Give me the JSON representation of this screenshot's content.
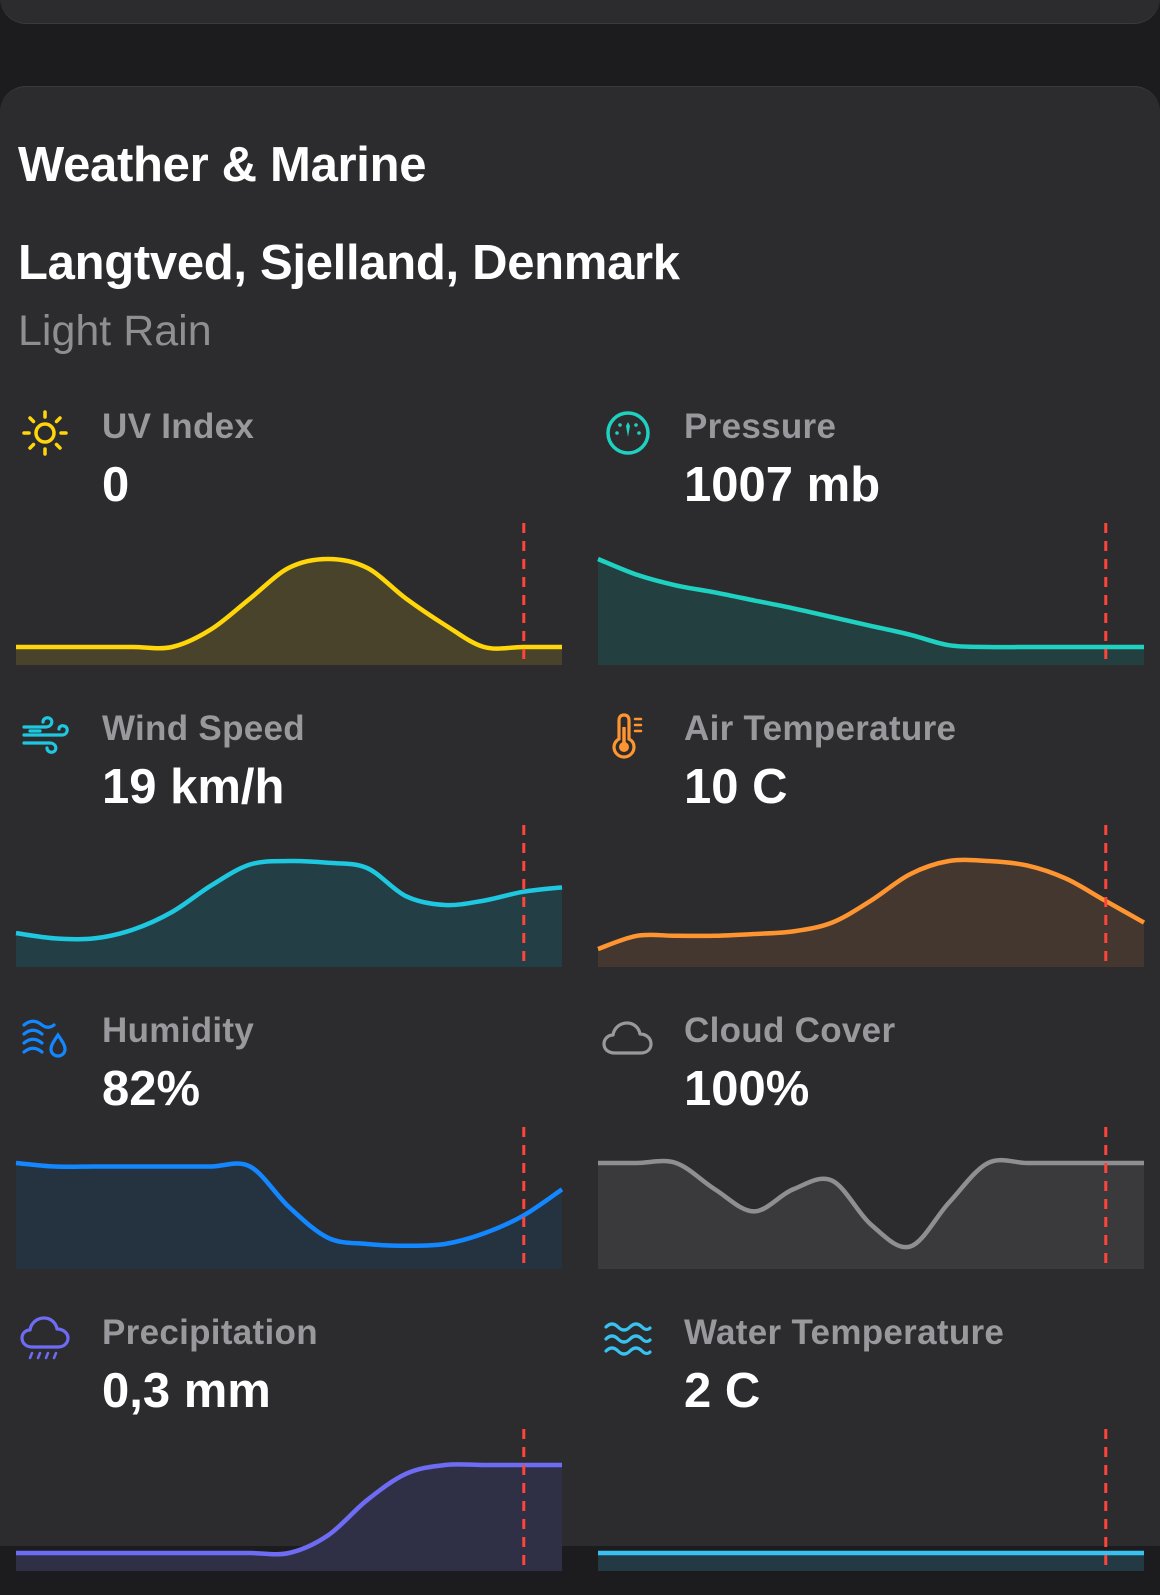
{
  "card": {
    "title": "Weather & Marine",
    "location": "Langtved, Sjelland, Denmark",
    "condition": "Light Rain"
  },
  "metrics": [
    {
      "label": "UV Index",
      "value": "0",
      "icon": "sun-icon",
      "color": "#ffd60a",
      "fill": "#48432a",
      "series": [
        0,
        0,
        0,
        0,
        0,
        0.2,
        0.55,
        0.9,
        1.0,
        0.9,
        0.55,
        0.25,
        0,
        0,
        0
      ],
      "now": 0.93
    },
    {
      "label": "Pressure",
      "value": "1007 mb",
      "icon": "gauge-icon",
      "color": "#1fd1c1",
      "fill": "#243f40",
      "series": [
        1.0,
        0.82,
        0.7,
        0.62,
        0.53,
        0.44,
        0.34,
        0.24,
        0.14,
        0.02,
        0,
        0,
        0,
        0,
        0
      ],
      "now": 0.93
    },
    {
      "label": "Wind Speed",
      "value": "19 km/h",
      "icon": "wind-icon",
      "color": "#1ec8e0",
      "fill": "#233e45",
      "series": [
        0.18,
        0.12,
        0.12,
        0.22,
        0.42,
        0.72,
        0.96,
        1.0,
        0.98,
        0.92,
        0.6,
        0.5,
        0.55,
        0.65,
        0.7
      ],
      "now": 0.93
    },
    {
      "label": "Air Temperature",
      "value": "10 C",
      "icon": "thermometer-icon",
      "color": "#ff9530",
      "fill": "#44372f",
      "series": [
        0,
        0.15,
        0.15,
        0.15,
        0.17,
        0.2,
        0.3,
        0.55,
        0.85,
        1.0,
        1.0,
        0.95,
        0.8,
        0.55,
        0.3
      ],
      "now": 0.93
    },
    {
      "label": "Humidity",
      "value": "82%",
      "icon": "humidity-icon",
      "color": "#1287ff",
      "fill": "#253341",
      "series": [
        1.0,
        0.96,
        0.96,
        0.96,
        0.96,
        0.96,
        0.96,
        0.5,
        0.15,
        0.08,
        0.06,
        0.08,
        0.2,
        0.4,
        0.7
      ],
      "now": 0.93
    },
    {
      "label": "Cloud Cover",
      "value": "100%",
      "icon": "cloud-icon",
      "color": "#8e8e93",
      "fill": "#3a3a3c",
      "series": [
        1.0,
        1.0,
        1.0,
        0.7,
        0.45,
        0.7,
        0.8,
        0.3,
        0.05,
        0.55,
        1.0,
        1.0,
        1.0,
        1.0,
        1.0
      ],
      "now": 0.93
    },
    {
      "label": "Precipitation",
      "value": "0,3 mm",
      "icon": "rain-cloud-icon",
      "color": "#6e6cf5",
      "fill": "#2f2f45",
      "series": [
        0,
        0,
        0,
        0,
        0,
        0,
        0,
        0,
        0.2,
        0.6,
        0.9,
        1.0,
        1.0,
        1.0,
        1.0
      ],
      "now": 0.93
    },
    {
      "label": "Water Temperature",
      "value": "2 C",
      "icon": "waves-icon",
      "color": "#37c2f2",
      "fill": "#233a45",
      "series": [
        0,
        0,
        0,
        0,
        0,
        0,
        0,
        0,
        0,
        0,
        0,
        0,
        0,
        0,
        0
      ],
      "now": 0.93
    }
  ]
}
